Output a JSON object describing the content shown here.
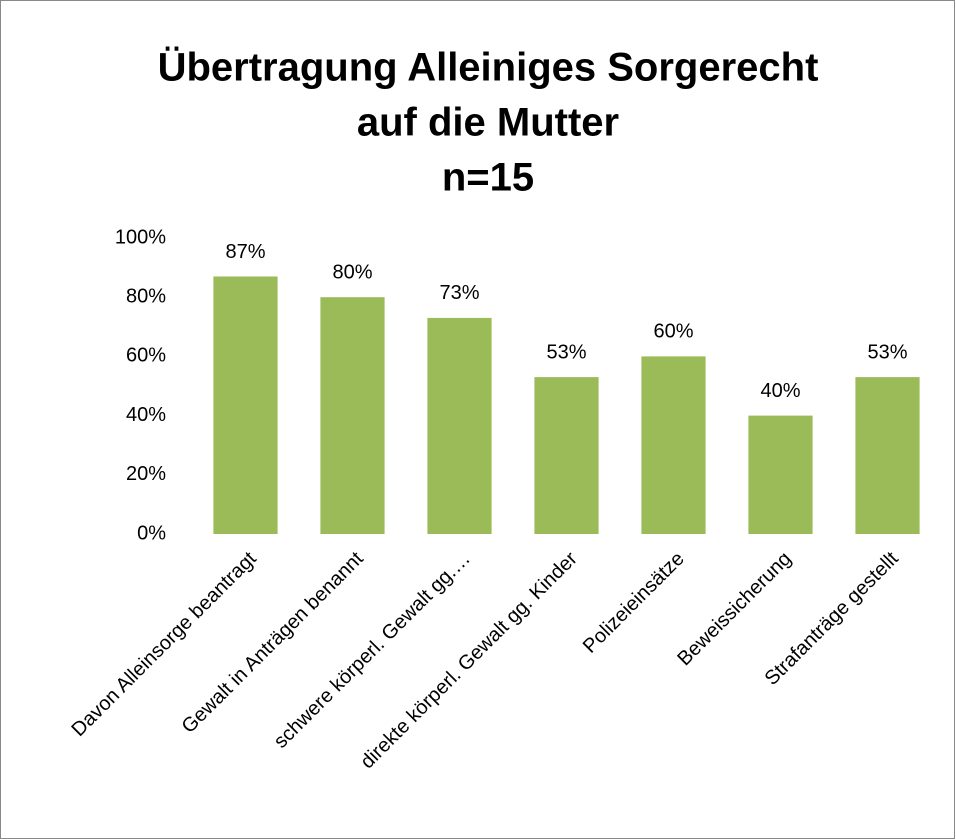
{
  "chart_data": {
    "type": "bar",
    "title": [
      "Übertragung Alleiniges Sorgerecht",
      "auf die Mutter",
      "n=15"
    ],
    "categories": [
      "Davon Alleinsorge beantragt",
      "Gewalt in Anträgen benannt",
      "schwere körperl. Gewalt gg.…",
      "direkte körperl. Gewalt gg. Kinder",
      "Polizeieinsätze",
      "Beweissicherung",
      "Strafanträge gestellt"
    ],
    "values": [
      87,
      80,
      73,
      53,
      60,
      40,
      53
    ],
    "value_labels": [
      "87%",
      "80%",
      "73%",
      "53%",
      "60%",
      "40%",
      "53%"
    ],
    "color": "#9bbb59",
    "ylim": [
      0,
      100
    ],
    "yticks": [
      {
        "value": 0,
        "label": "0%"
      },
      {
        "value": 20,
        "label": "20%"
      },
      {
        "value": 40,
        "label": "40%"
      },
      {
        "value": 60,
        "label": "60%"
      },
      {
        "value": 80,
        "label": "80%"
      },
      {
        "value": 100,
        "label": "100%"
      }
    ],
    "grid": false
  }
}
